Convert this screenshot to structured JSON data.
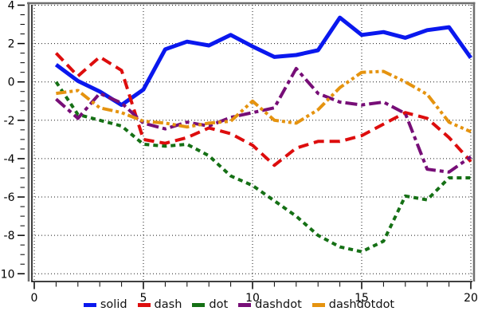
{
  "chart_data": {
    "type": "line",
    "title": "",
    "xlabel": "",
    "ylabel": "",
    "xlim": [
      -0.11,
      20.07
    ],
    "ylim": [
      -10.45,
      4.3
    ],
    "x_major_ticks": [
      0,
      5,
      10,
      15,
      20
    ],
    "x_minor_step": 1,
    "y_major_ticks": [
      4,
      2,
      0,
      -2,
      -4,
      -6,
      -8,
      -10
    ],
    "y_minor_step": 0.5,
    "grid": "dotted",
    "grid_color": "#1a1a1a",
    "frame_color": "#6e6e6e",
    "axis_color": "#000000",
    "legend_position": "bottom-center",
    "x": [
      1,
      2,
      3,
      4,
      5,
      6,
      7,
      8,
      9,
      10,
      11,
      12,
      13,
      14,
      15,
      16,
      17,
      18,
      19,
      20
    ],
    "series": [
      {
        "name": "solid",
        "color": "#0a18ee",
        "dash": "solid",
        "width": 5,
        "values": [
          0.9,
          0.05,
          -0.5,
          -1.2,
          -0.4,
          1.7,
          2.1,
          1.9,
          2.45,
          1.85,
          1.3,
          1.4,
          1.65,
          3.35,
          2.45,
          2.6,
          2.3,
          2.7,
          2.85,
          1.25
        ]
      },
      {
        "name": "dash",
        "color": "#dd0d0d",
        "dash": "dash",
        "width": 4,
        "values": [
          1.5,
          0.3,
          1.3,
          0.6,
          -3.0,
          -3.2,
          -2.9,
          -2.4,
          -2.7,
          -3.3,
          -4.35,
          -3.45,
          -3.1,
          -3.1,
          -2.8,
          -2.2,
          -1.6,
          -1.9,
          -2.9,
          -4.15
        ]
      },
      {
        "name": "dot",
        "color": "#157015",
        "dash": "dot",
        "width": 4,
        "values": [
          0.0,
          -1.7,
          -2.0,
          -2.3,
          -3.25,
          -3.35,
          -3.25,
          -3.85,
          -4.9,
          -5.4,
          -6.2,
          -7.0,
          -8.0,
          -8.6,
          -8.85,
          -8.3,
          -5.95,
          -6.15,
          -5.0,
          -5.0
        ]
      },
      {
        "name": "dashdot",
        "color": "#770e77",
        "dash": "dashdot",
        "width": 4,
        "values": [
          -0.9,
          -1.9,
          -0.6,
          -1.1,
          -2.15,
          -2.45,
          -2.1,
          -2.3,
          -1.85,
          -1.6,
          -1.35,
          0.7,
          -0.6,
          -1.05,
          -1.2,
          -1.05,
          -1.65,
          -4.55,
          -4.7,
          -3.9
        ]
      },
      {
        "name": "dashdotdot",
        "color": "#e5930f",
        "dash": "dashdotdot",
        "width": 4,
        "values": [
          -0.6,
          -0.45,
          -1.35,
          -1.6,
          -2.05,
          -2.15,
          -2.35,
          -2.15,
          -2.05,
          -1.0,
          -2.0,
          -2.15,
          -1.45,
          -0.3,
          0.5,
          0.55,
          0.0,
          -0.65,
          -2.1,
          -2.6
        ]
      }
    ],
    "legend": [
      "solid",
      "dash",
      "dot",
      "dashdot",
      "dashdotdot"
    ]
  }
}
